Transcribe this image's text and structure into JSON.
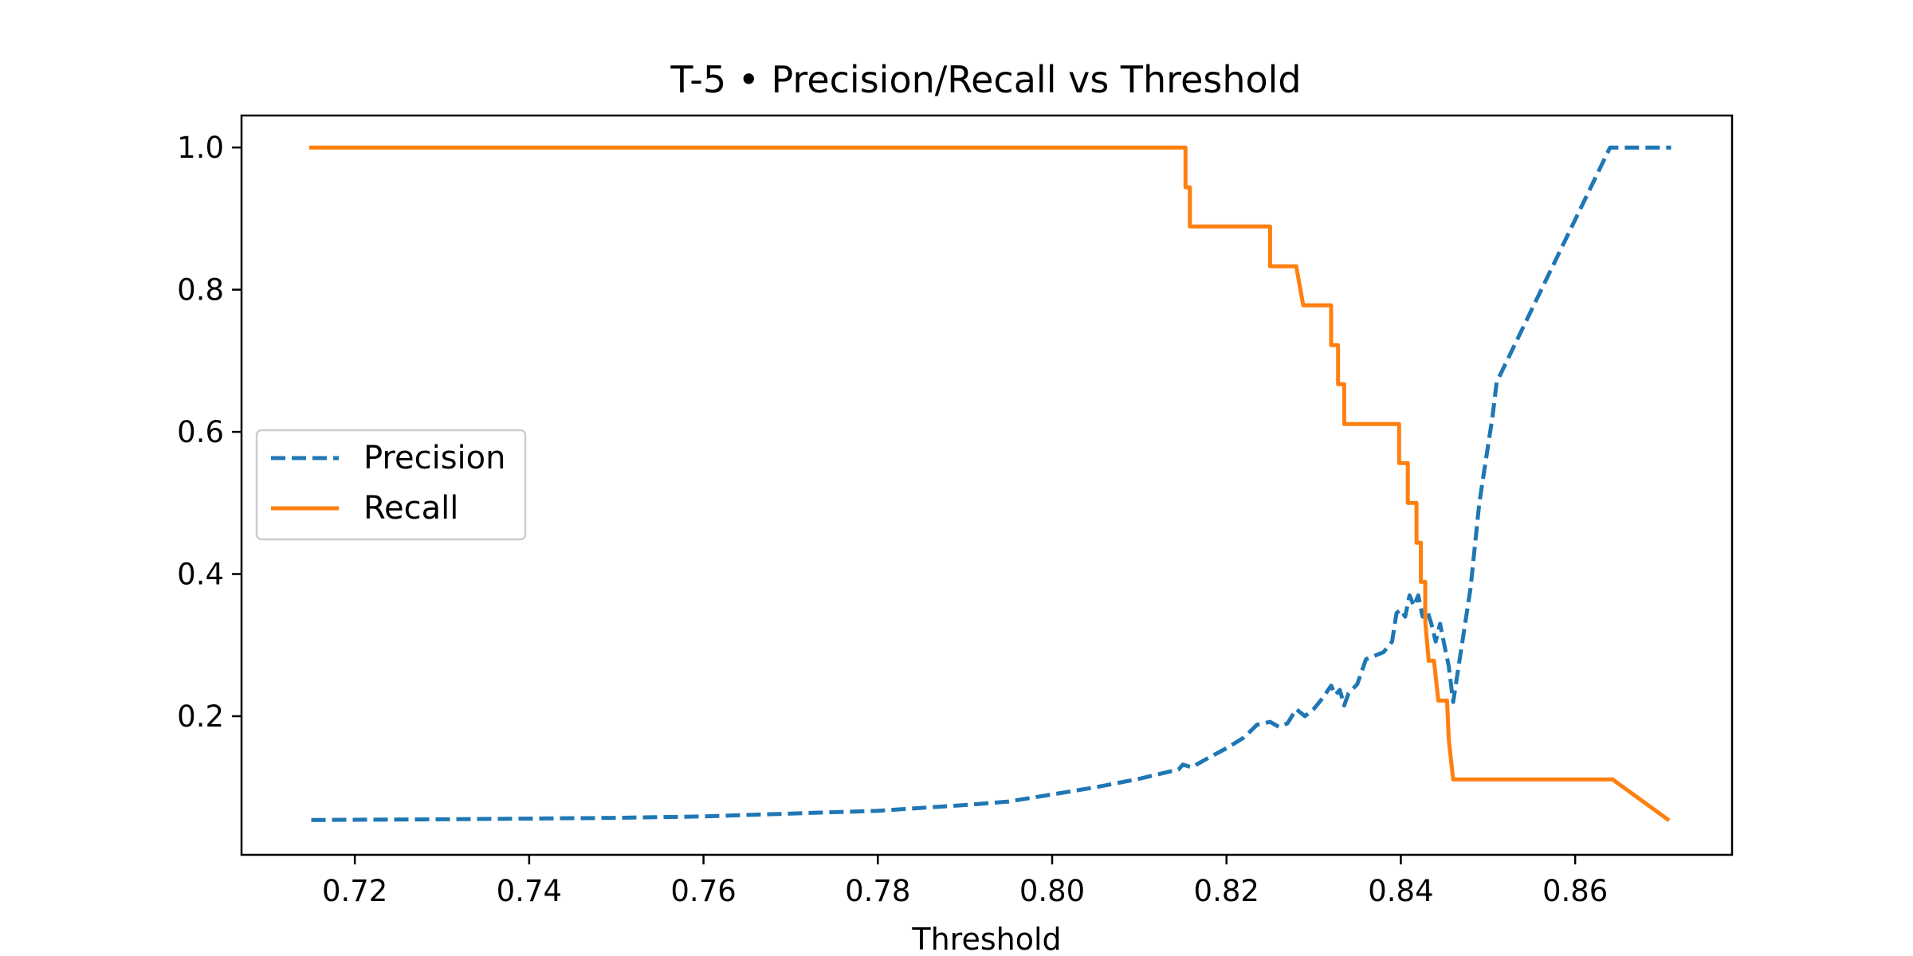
{
  "chart_data": {
    "type": "line",
    "title": "T-5 • Precision/Recall vs Threshold",
    "xlabel": "Threshold",
    "ylabel": "",
    "xlim": [
      0.707,
      0.878
    ],
    "ylim": [
      0.005,
      1.045
    ],
    "xticks": [
      0.72,
      0.74,
      0.76,
      0.78,
      0.8,
      0.82,
      0.84,
      0.86
    ],
    "xtick_labels": [
      "0.72",
      "0.74",
      "0.76",
      "0.78",
      "0.80",
      "0.82",
      "0.84",
      "0.86"
    ],
    "yticks": [
      0.2,
      0.4,
      0.6,
      0.8,
      1.0
    ],
    "ytick_labels": [
      "0.2",
      "0.4",
      "0.6",
      "0.8",
      "1.0"
    ],
    "grid": false,
    "legend": {
      "placement": "center-left"
    },
    "series": [
      {
        "name": "Precision",
        "color": "#1f77b4",
        "style": "dashed",
        "points": [
          [
            0.715,
            0.054
          ],
          [
            0.73,
            0.055
          ],
          [
            0.74,
            0.056
          ],
          [
            0.75,
            0.057
          ],
          [
            0.76,
            0.059
          ],
          [
            0.77,
            0.063
          ],
          [
            0.78,
            0.067
          ],
          [
            0.79,
            0.075
          ],
          [
            0.795,
            0.08
          ],
          [
            0.8,
            0.09
          ],
          [
            0.805,
            0.1
          ],
          [
            0.81,
            0.112
          ],
          [
            0.8145,
            0.125
          ],
          [
            0.815,
            0.132
          ],
          [
            0.816,
            0.128
          ],
          [
            0.818,
            0.142
          ],
          [
            0.82,
            0.155
          ],
          [
            0.822,
            0.17
          ],
          [
            0.8235,
            0.188
          ],
          [
            0.825,
            0.192
          ],
          [
            0.826,
            0.185
          ],
          [
            0.827,
            0.19
          ],
          [
            0.828,
            0.21
          ],
          [
            0.829,
            0.2
          ],
          [
            0.83,
            0.21
          ],
          [
            0.831,
            0.225
          ],
          [
            0.832,
            0.243
          ],
          [
            0.8325,
            0.23
          ],
          [
            0.833,
            0.237
          ],
          [
            0.8335,
            0.215
          ],
          [
            0.834,
            0.232
          ],
          [
            0.835,
            0.245
          ],
          [
            0.836,
            0.28
          ],
          [
            0.837,
            0.285
          ],
          [
            0.838,
            0.29
          ],
          [
            0.839,
            0.305
          ],
          [
            0.8395,
            0.345
          ],
          [
            0.84,
            0.35
          ],
          [
            0.8405,
            0.34
          ],
          [
            0.841,
            0.37
          ],
          [
            0.8415,
            0.355
          ],
          [
            0.842,
            0.37
          ],
          [
            0.8425,
            0.34
          ],
          [
            0.843,
            0.35
          ],
          [
            0.8435,
            0.33
          ],
          [
            0.844,
            0.305
          ],
          [
            0.8445,
            0.33
          ],
          [
            0.845,
            0.3
          ],
          [
            0.8455,
            0.27
          ],
          [
            0.846,
            0.22
          ],
          [
            0.847,
            0.3
          ],
          [
            0.848,
            0.38
          ],
          [
            0.849,
            0.5
          ],
          [
            0.8505,
            0.62
          ],
          [
            0.851,
            0.67
          ],
          [
            0.864,
            1.0
          ],
          [
            0.871,
            1.0
          ]
        ]
      },
      {
        "name": "Recall",
        "color": "#ff7f0e",
        "style": "solid",
        "points": [
          [
            0.715,
            1.0
          ],
          [
            0.8153,
            1.0
          ],
          [
            0.8153,
            0.944
          ],
          [
            0.8158,
            0.944
          ],
          [
            0.8158,
            0.889
          ],
          [
            0.825,
            0.889
          ],
          [
            0.825,
            0.833
          ],
          [
            0.828,
            0.833
          ],
          [
            0.8288,
            0.778
          ],
          [
            0.832,
            0.778
          ],
          [
            0.832,
            0.722
          ],
          [
            0.8328,
            0.722
          ],
          [
            0.8328,
            0.667
          ],
          [
            0.8335,
            0.667
          ],
          [
            0.8335,
            0.611
          ],
          [
            0.8398,
            0.611
          ],
          [
            0.8398,
            0.556
          ],
          [
            0.8408,
            0.556
          ],
          [
            0.8408,
            0.5
          ],
          [
            0.8418,
            0.5
          ],
          [
            0.8418,
            0.444
          ],
          [
            0.8423,
            0.444
          ],
          [
            0.8423,
            0.389
          ],
          [
            0.8428,
            0.389
          ],
          [
            0.8428,
            0.333
          ],
          [
            0.8432,
            0.278
          ],
          [
            0.8438,
            0.278
          ],
          [
            0.8443,
            0.222
          ],
          [
            0.8453,
            0.222
          ],
          [
            0.8455,
            0.167
          ],
          [
            0.846,
            0.111
          ],
          [
            0.8643,
            0.111
          ],
          [
            0.8706,
            0.055
          ]
        ]
      }
    ]
  }
}
